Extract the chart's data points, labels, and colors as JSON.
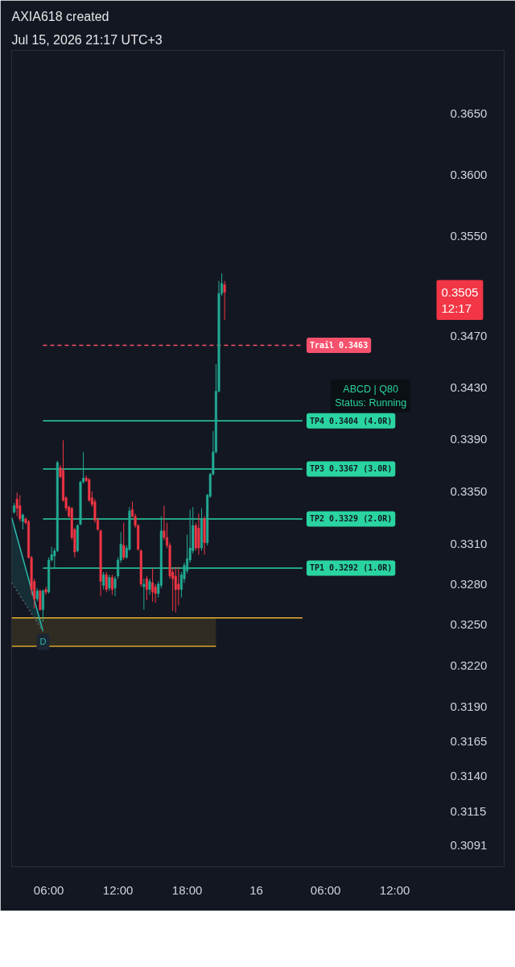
{
  "chart_data": {
    "type": "candlestick",
    "title": "AXIA618 created",
    "subtitle": "Jul 15, 2026 21:17 UTC+3",
    "x": [
      "2026-07-15T03:00",
      "2026-07-15T03:15",
      "2026-07-15T03:30",
      "2026-07-15T03:45",
      "2026-07-15T04:00",
      "2026-07-15T04:15",
      "2026-07-15T04:30",
      "2026-07-15T04:45",
      "2026-07-15T05:00",
      "2026-07-15T05:15",
      "2026-07-15T05:30",
      "2026-07-15T05:45",
      "2026-07-15T06:00",
      "2026-07-15T06:15",
      "2026-07-15T06:30",
      "2026-07-15T06:45",
      "2026-07-15T07:00",
      "2026-07-15T07:15",
      "2026-07-15T07:30",
      "2026-07-15T07:45",
      "2026-07-15T08:00",
      "2026-07-15T08:15",
      "2026-07-15T08:30",
      "2026-07-15T08:45",
      "2026-07-15T09:00",
      "2026-07-15T09:15",
      "2026-07-15T09:30",
      "2026-07-15T09:45",
      "2026-07-15T10:00",
      "2026-07-15T10:15",
      "2026-07-15T10:30",
      "2026-07-15T10:45",
      "2026-07-15T11:00",
      "2026-07-15T11:15",
      "2026-07-15T11:30",
      "2026-07-15T11:45",
      "2026-07-15T12:00",
      "2026-07-15T12:15",
      "2026-07-15T12:30",
      "2026-07-15T12:45",
      "2026-07-15T13:00",
      "2026-07-15T13:15",
      "2026-07-15T13:30",
      "2026-07-15T13:45",
      "2026-07-15T14:00",
      "2026-07-15T14:15",
      "2026-07-15T14:30",
      "2026-07-15T14:45",
      "2026-07-15T15:00",
      "2026-07-15T15:15",
      "2026-07-15T15:30",
      "2026-07-15T15:45",
      "2026-07-15T16:00",
      "2026-07-15T16:15",
      "2026-07-15T16:30",
      "2026-07-15T16:45",
      "2026-07-15T17:00",
      "2026-07-15T17:15",
      "2026-07-15T17:30",
      "2026-07-15T17:45",
      "2026-07-15T18:00",
      "2026-07-15T18:15",
      "2026-07-15T18:30",
      "2026-07-15T18:45",
      "2026-07-15T19:00",
      "2026-07-15T19:15",
      "2026-07-15T19:30",
      "2026-07-15T19:45",
      "2026-07-15T20:00",
      "2026-07-15T20:15",
      "2026-07-15T20:30",
      "2026-07-15T20:45",
      "2026-07-15T21:00",
      "2026-07-15T21:15"
    ],
    "ohlc": [
      [
        0.3334,
        0.3341,
        0.3333,
        0.3339
      ],
      [
        0.3344,
        0.3349,
        0.3331,
        0.3337
      ],
      [
        0.3339,
        0.3347,
        0.3327,
        0.3329
      ],
      [
        0.3327,
        0.3333,
        0.3321,
        0.3332
      ],
      [
        0.3329,
        0.333,
        0.3325,
        0.3326
      ],
      [
        0.3327,
        0.3328,
        0.3299,
        0.33
      ],
      [
        0.33,
        0.3301,
        0.3272,
        0.3276
      ],
      [
        0.3282,
        0.3284,
        0.3262,
        0.3269
      ],
      [
        0.3269,
        0.3277,
        0.3267,
        0.3275
      ],
      [
        0.3275,
        0.3276,
        0.326,
        0.3261
      ],
      [
        0.3261,
        0.3276,
        0.3252,
        0.3275
      ],
      [
        0.3276,
        0.3278,
        0.3272,
        0.3274
      ],
      [
        0.3274,
        0.33,
        0.3273,
        0.3298
      ],
      [
        0.3298,
        0.3308,
        0.3297,
        0.3302
      ],
      [
        0.3301,
        0.3307,
        0.3292,
        0.3305
      ],
      [
        0.3305,
        0.3373,
        0.3304,
        0.3372
      ],
      [
        0.3368,
        0.337,
        0.336,
        0.3361
      ],
      [
        0.3366,
        0.3389,
        0.3342,
        0.3343
      ],
      [
        0.3345,
        0.3346,
        0.3335,
        0.3337
      ],
      [
        0.3338,
        0.3339,
        0.333,
        0.3331
      ],
      [
        0.3337,
        0.3338,
        0.3313,
        0.3315
      ],
      [
        0.3321,
        0.3322,
        0.33,
        0.3304
      ],
      [
        0.3305,
        0.3325,
        0.3304,
        0.3324
      ],
      [
        0.3325,
        0.3358,
        0.3324,
        0.3357
      ],
      [
        0.3357,
        0.338,
        0.3356,
        0.336
      ],
      [
        0.336,
        0.3362,
        0.3357,
        0.3358
      ],
      [
        0.3359,
        0.336,
        0.3342,
        0.3343
      ],
      [
        0.3345,
        0.335,
        0.3338,
        0.334
      ],
      [
        0.3342,
        0.3344,
        0.3326,
        0.3328
      ],
      [
        0.3328,
        0.333,
        0.332,
        0.3321
      ],
      [
        0.332,
        0.3321,
        0.3271,
        0.3282
      ],
      [
        0.3279,
        0.3289,
        0.3276,
        0.3287
      ],
      [
        0.3287,
        0.3289,
        0.3274,
        0.3276
      ],
      [
        0.3277,
        0.3287,
        0.3275,
        0.3285
      ],
      [
        0.3285,
        0.3287,
        0.3272,
        0.3276
      ],
      [
        0.3277,
        0.3286,
        0.3271,
        0.3284
      ],
      [
        0.3286,
        0.33,
        0.3284,
        0.3298
      ],
      [
        0.3298,
        0.3319,
        0.3296,
        0.331
      ],
      [
        0.3309,
        0.3326,
        0.3298,
        0.33
      ],
      [
        0.33,
        0.3309,
        0.3299,
        0.3307
      ],
      [
        0.3306,
        0.3338,
        0.3305,
        0.3335
      ],
      [
        0.3336,
        0.3342,
        0.333,
        0.3331
      ],
      [
        0.3331,
        0.3333,
        0.3322,
        0.3324
      ],
      [
        0.3324,
        0.3325,
        0.3305,
        0.3306
      ],
      [
        0.3305,
        0.3306,
        0.3278,
        0.328
      ],
      [
        0.3278,
        0.3284,
        0.3261,
        0.328
      ],
      [
        0.3284,
        0.3286,
        0.3268,
        0.3276
      ],
      [
        0.3276,
        0.3284,
        0.3272,
        0.3282
      ],
      [
        0.3281,
        0.3292,
        0.3267,
        0.3274
      ],
      [
        0.3278,
        0.328,
        0.3266,
        0.3273
      ],
      [
        0.3273,
        0.3282,
        0.327,
        0.328
      ],
      [
        0.3279,
        0.3331,
        0.3277,
        0.332
      ],
      [
        0.332,
        0.3339,
        0.3313,
        0.3315
      ],
      [
        0.3315,
        0.3326,
        0.3307,
        0.3309
      ],
      [
        0.3309,
        0.3311,
        0.3284,
        0.3286
      ],
      [
        0.3289,
        0.3292,
        0.326,
        0.3284
      ],
      [
        0.3286,
        0.3293,
        0.3259,
        0.3276
      ],
      [
        0.328,
        0.3293,
        0.3264,
        0.3276
      ],
      [
        0.3276,
        0.3289,
        0.327,
        0.3287
      ],
      [
        0.3284,
        0.3296,
        0.3281,
        0.3294
      ],
      [
        0.329,
        0.3317,
        0.3288,
        0.3299
      ],
      [
        0.3298,
        0.3336,
        0.3296,
        0.3307
      ],
      [
        0.3305,
        0.3338,
        0.3303,
        0.3324
      ],
      [
        0.3324,
        0.3326,
        0.3305,
        0.3307
      ],
      [
        0.3322,
        0.3333,
        0.3302,
        0.3307
      ],
      [
        0.3307,
        0.3337,
        0.3305,
        0.3329
      ],
      [
        0.3329,
        0.3331,
        0.3302,
        0.3311
      ],
      [
        0.3311,
        0.3348,
        0.3309,
        0.3347
      ],
      [
        0.3346,
        0.3364,
        0.3345,
        0.3363
      ],
      [
        0.3363,
        0.3396,
        0.3362,
        0.338
      ],
      [
        0.338,
        0.3448,
        0.3379,
        0.3427
      ],
      [
        0.3427,
        0.3514,
        0.3426,
        0.3504
      ],
      [
        0.3504,
        0.352,
        0.3502,
        0.3512
      ],
      [
        0.3511,
        0.3514,
        0.3483,
        0.3505
      ]
    ],
    "colors": [
      "#22ab94",
      "#f23645",
      "#f23645",
      "#22ab94",
      "#f23645",
      "#f23645",
      "#f23645",
      "#f23645",
      "#22ab94",
      "#f23645",
      "#22ab94",
      "#f23645",
      "#22ab94",
      "#22ab94",
      "#22ab94",
      "#22ab94",
      "#f23645",
      "#f23645",
      "#f23645",
      "#f23645",
      "#f23645",
      "#f23645",
      "#22ab94",
      "#22ab94",
      "#22ab94",
      "#f23645",
      "#f23645",
      "#f23645",
      "#f23645",
      "#f23645",
      "#f23645",
      "#22ab94",
      "#f23645",
      "#22ab94",
      "#f23645",
      "#22ab94",
      "#22ab94",
      "#22ab94",
      "#f23645",
      "#22ab94",
      "#22ab94",
      "#f23645",
      "#f23645",
      "#f23645",
      "#f23645",
      "#22ab94",
      "#f23645",
      "#22ab94",
      "#f23645",
      "#f23645",
      "#22ab94",
      "#22ab94",
      "#f23645",
      "#f23645",
      "#f23645",
      "#f23645",
      "#f23645",
      "#f23645",
      "#22ab94",
      "#22ab94",
      "#22ab94",
      "#22ab94",
      "#22ab94",
      "#f23645",
      "#f23645",
      "#22ab94",
      "#f23645",
      "#22ab94",
      "#22ab94",
      "#22ab94",
      "#22ab94",
      "#22ab94",
      "#22ab94",
      "#f23645"
    ],
    "series": [
      {
        "type": "line",
        "x": [
          "2026-07-15T02:47",
          "2026-07-15T20:30"
        ],
        "values": [
          0.3234,
          0.3234
        ],
        "lower": [
          0.3234,
          0.3234
        ],
        "upper": [
          0.3255,
          0.3255
        ],
        "color": "#d9a52b"
      },
      {
        "type": "line",
        "x": [
          "2026-07-15T02:47",
          "2026-07-16T04:00"
        ],
        "values": [
          0.3255,
          0.3255
        ],
        "color": "#e8b030"
      },
      {
        "type": "line",
        "x": [
          "2026-07-15T02:47",
          "2026-07-15T05:30"
        ],
        "values": [
          0.333,
          0.3245
        ],
        "lower": [
          0.3281,
          0.3245
        ],
        "upper": [
          0.333,
          0.3245
        ],
        "color": "#2bbbad"
      },
      {
        "type": "line",
        "x": [
          "2026-07-15T02:47",
          "2026-07-15T05:30"
        ],
        "values": [
          0.3281,
          0.3245
        ],
        "color": "#5d606b",
        "line_style": "dotted"
      },
      {
        "type": "line",
        "name": "TP4 0.3404 (4.0R)",
        "x": [
          "2026-07-15T05:30",
          "2026-07-16T04:00"
        ],
        "values": [
          0.3404,
          0.3404
        ],
        "color": "#2ad4a0"
      },
      {
        "type": "line",
        "name": "TP3 0.3367 (3.0R)",
        "x": [
          "2026-07-15T05:30",
          "2026-07-16T04:00"
        ],
        "values": [
          0.3367,
          0.3367
        ],
        "color": "#2ad4a0"
      },
      {
        "type": "line",
        "name": "TP2 0.3329 (2.0R)",
        "x": [
          "2026-07-15T05:30",
          "2026-07-16T04:00"
        ],
        "values": [
          0.3329,
          0.3329
        ],
        "color": "#2ad4a0"
      },
      {
        "type": "line",
        "name": "TP1 0.3292 (1.0R)",
        "x": [
          "2026-07-15T05:30",
          "2026-07-16T04:00"
        ],
        "values": [
          0.3292,
          0.3292
        ],
        "color": "#2ad4a0"
      },
      {
        "type": "line",
        "name": "Trail 0.3463",
        "x": [
          "2026-07-15T05:30",
          "2026-07-16T04:00"
        ],
        "values": [
          0.3463,
          0.3463
        ],
        "color": "#f7526d",
        "line_style": "dashed"
      }
    ],
    "annotations": [
      {
        "text": "D",
        "x": "2026-07-15T05:30",
        "y": 0.3245
      },
      "0.3505\n12:17",
      "ABCD | Q80",
      "Status: Running"
    ],
    "xlim": [
      "2026-07-15T02:47",
      "2026-07-16T21:29"
    ],
    "xticks": [
      {
        "value": "2026-07-15T06:00",
        "label": "06:00"
      },
      {
        "value": "2026-07-15T12:00",
        "label": "12:00"
      },
      {
        "value": "2026-07-15T18:00",
        "label": "18:00"
      },
      {
        "value": "2026-07-16T00:00",
        "label": "16"
      },
      {
        "value": "2026-07-16T06:00",
        "label": "06:00"
      },
      {
        "value": "2026-07-16T12:00",
        "label": "12:00"
      }
    ],
    "ylim": [
      0.3076,
      0.3703
    ],
    "yticks": [
      {
        "value": 0.365,
        "label": "0.3650"
      },
      {
        "value": 0.36,
        "label": "0.3600"
      },
      {
        "value": 0.355,
        "label": "0.3550"
      },
      {
        "value": 0.347,
        "label": "0.3470"
      },
      {
        "value": 0.343,
        "label": "0.3430"
      },
      {
        "value": 0.339,
        "label": "0.3390"
      },
      {
        "value": 0.335,
        "label": "0.3350"
      },
      {
        "value": 0.331,
        "label": "0.3310"
      },
      {
        "value": 0.328,
        "label": "0.3280"
      },
      {
        "value": 0.325,
        "label": "0.3250"
      },
      {
        "value": 0.322,
        "label": "0.3220"
      },
      {
        "value": 0.319,
        "label": "0.3190"
      },
      0.3165,
      {
        "value": 0.314,
        "label": "0.3140"
      },
      0.3115,
      0.3091
    ],
    "log": true,
    "grid": false
  }
}
